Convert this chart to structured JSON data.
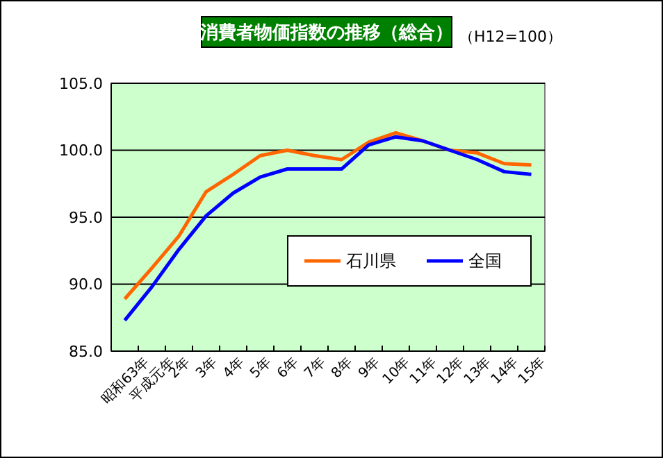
{
  "chart_data": {
    "type": "line",
    "title": "消費者物価指数の推移（総合）",
    "subtitle": "（H12=100）",
    "categories": [
      "昭和63年",
      "平成元年",
      "2年",
      "3年",
      "4年",
      "5年",
      "6年",
      "7年",
      "8年",
      "9年",
      "10年",
      "11年",
      "12年",
      "13年",
      "14年",
      "15年"
    ],
    "series": [
      {
        "name": "石川県",
        "color": "#ff6600",
        "values": [
          88.9,
          91.2,
          93.6,
          96.9,
          98.2,
          99.6,
          100.0,
          99.6,
          99.3,
          100.6,
          101.3,
          100.7,
          100.0,
          99.8,
          99.0,
          98.9
        ]
      },
      {
        "name": "全国",
        "color": "#0000ff",
        "values": [
          87.3,
          89.8,
          92.6,
          95.1,
          96.8,
          98.0,
          98.6,
          98.6,
          98.6,
          100.4,
          101.0,
          100.7,
          100.0,
          99.3,
          98.4,
          98.2
        ]
      }
    ],
    "ylim": [
      85,
      105
    ],
    "yticks": [
      {
        "value": 85,
        "label": "85.0"
      },
      {
        "value": 90,
        "label": "90.0"
      },
      {
        "value": 95,
        "label": "95.0"
      },
      {
        "value": 100,
        "label": "100.0"
      },
      {
        "value": 105,
        "label": "105.0"
      }
    ],
    "grid": "y",
    "legend": "bottom right",
    "marker": "none",
    "line_style": "solid"
  }
}
